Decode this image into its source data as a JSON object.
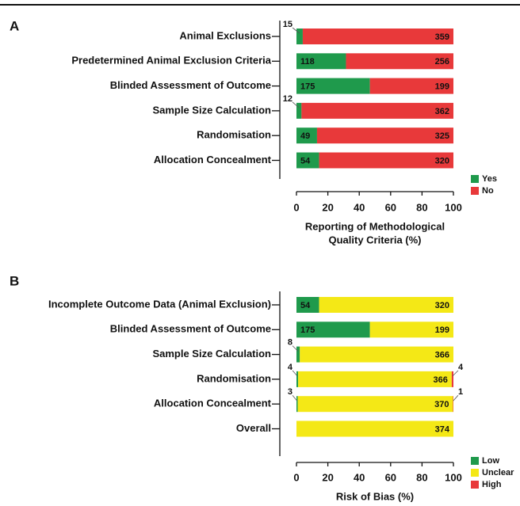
{
  "chart_data": [
    {
      "type": "bar",
      "stacked": true,
      "normalize": true,
      "panel_label": "A",
      "categories": [
        "Animal Exclusions",
        "Predetermined Animal Exclusion Criteria",
        "Blinded Assessment of Outcome",
        "Sample Size Calculation",
        "Randomisation",
        "Allocation Concealment"
      ],
      "series": [
        {
          "name": "Yes",
          "color": "#1f9a4c",
          "values": [
            15,
            118,
            175,
            12,
            49,
            54
          ]
        },
        {
          "name": "No",
          "color": "#e8393a",
          "values": [
            359,
            256,
            199,
            362,
            325,
            320
          ]
        }
      ],
      "xlim": [
        0,
        100
      ],
      "xticks": [
        0,
        20,
        40,
        60,
        80,
        100
      ],
      "xlabel": [
        "Reporting of Methodological",
        "Quality Criteria (%)"
      ]
    },
    {
      "type": "bar",
      "stacked": true,
      "normalize": true,
      "panel_label": "B",
      "categories": [
        "Incomplete Outcome Data (Animal Exclusion)",
        "Blinded Assessment of Outcome",
        "Sample Size Calculation",
        "Randomisation",
        "Allocation Concealment",
        "Overall"
      ],
      "series": [
        {
          "name": "Low",
          "color": "#1f9a4c",
          "values": [
            54,
            175,
            8,
            4,
            3,
            0
          ]
        },
        {
          "name": "Unclear",
          "color": "#f4e816",
          "values": [
            320,
            199,
            366,
            366,
            370,
            374
          ]
        },
        {
          "name": "High",
          "color": "#e8393a",
          "values": [
            0,
            0,
            0,
            4,
            1,
            0
          ]
        }
      ],
      "xlim": [
        0,
        100
      ],
      "xticks": [
        0,
        20,
        40,
        60,
        80,
        100
      ],
      "xlabel": [
        "Risk of Bias (%)"
      ]
    }
  ]
}
